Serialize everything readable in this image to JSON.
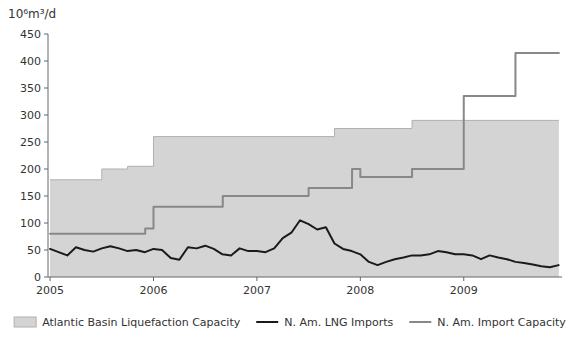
{
  "chart_data": {
    "type": "line",
    "y_label": "10⁶m³/d",
    "xlim": [
      2004.98,
      2009.95
    ],
    "xticks": [
      2005,
      2006,
      2007,
      2008,
      2009
    ],
    "ylim": [
      0,
      450
    ],
    "yticks": [
      0,
      50,
      100,
      150,
      200,
      250,
      300,
      350,
      400,
      450
    ],
    "grid": false,
    "legend": "bottom",
    "series": [
      {
        "name": "Atlantic Basin Liquefaction Capacity",
        "type": "area",
        "color": "#d4d4d4",
        "x": [
          2005.0,
          2005.5,
          2005.5,
          2005.75,
          2005.75,
          2006.0,
          2006.0,
          2007.75,
          2007.75,
          2008.5,
          2008.5,
          2009.92
        ],
        "values": [
          180,
          180,
          200,
          200,
          205,
          205,
          260,
          260,
          275,
          275,
          290,
          290
        ]
      },
      {
        "name": "N. Am. LNG Imports",
        "type": "line",
        "color": "#1a1a1a",
        "x": [
          2005.0,
          2005.083,
          2005.167,
          2005.25,
          2005.333,
          2005.417,
          2005.5,
          2005.583,
          2005.667,
          2005.75,
          2005.833,
          2005.917,
          2006.0,
          2006.083,
          2006.167,
          2006.25,
          2006.333,
          2006.417,
          2006.5,
          2006.583,
          2006.667,
          2006.75,
          2006.833,
          2006.917,
          2007.0,
          2007.083,
          2007.167,
          2007.25,
          2007.333,
          2007.417,
          2007.5,
          2007.583,
          2007.667,
          2007.75,
          2007.833,
          2007.917,
          2008.0,
          2008.083,
          2008.167,
          2008.25,
          2008.333,
          2008.417,
          2008.5,
          2008.583,
          2008.667,
          2008.75,
          2008.833,
          2008.917,
          2009.0,
          2009.083,
          2009.167,
          2009.25,
          2009.333,
          2009.417,
          2009.5,
          2009.583,
          2009.667,
          2009.75,
          2009.833,
          2009.917
        ],
        "values": [
          52,
          46,
          40,
          55,
          50,
          47,
          53,
          57,
          53,
          48,
          50,
          46,
          52,
          50,
          35,
          32,
          55,
          53,
          58,
          52,
          42,
          40,
          53,
          48,
          48,
          46,
          53,
          72,
          82,
          105,
          98,
          88,
          92,
          62,
          52,
          48,
          42,
          28,
          22,
          28,
          33,
          36,
          40,
          40,
          42,
          48,
          46,
          42,
          42,
          40,
          33,
          40,
          36,
          33,
          28,
          26,
          23,
          20,
          18,
          22
        ]
      },
      {
        "name": "N. Am. Import Capacity",
        "type": "line",
        "color": "#888888",
        "x": [
          2005.0,
          2005.92,
          2005.92,
          2006.0,
          2006.0,
          2006.67,
          2006.67,
          2007.5,
          2007.5,
          2007.92,
          2007.92,
          2008.0,
          2008.0,
          2008.5,
          2008.5,
          2009.0,
          2009.0,
          2009.5,
          2009.5,
          2009.92
        ],
        "values": [
          80,
          80,
          90,
          90,
          130,
          130,
          150,
          150,
          165,
          165,
          200,
          200,
          185,
          185,
          200,
          200,
          335,
          335,
          415,
          415
        ]
      }
    ]
  }
}
